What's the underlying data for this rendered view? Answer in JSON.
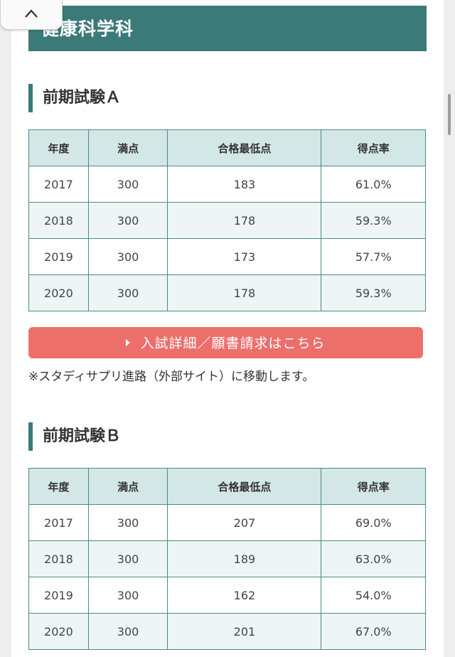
{
  "department": {
    "title": "健康科学科"
  },
  "table_headers": [
    "年度",
    "満点",
    "合格最低点",
    "得点率"
  ],
  "sections": [
    {
      "title": "前期試験Ａ",
      "rows": [
        [
          "2017",
          "300",
          "183",
          "61.0%"
        ],
        [
          "2018",
          "300",
          "178",
          "59.3%"
        ],
        [
          "2019",
          "300",
          "173",
          "57.7%"
        ],
        [
          "2020",
          "300",
          "178",
          "59.3%"
        ]
      ]
    },
    {
      "title": "前期試験Ｂ",
      "rows": [
        [
          "2017",
          "300",
          "207",
          "69.0%"
        ],
        [
          "2018",
          "300",
          "189",
          "63.0%"
        ],
        [
          "2019",
          "300",
          "162",
          "54.0%"
        ],
        [
          "2020",
          "300",
          "201",
          "67.0%"
        ]
      ]
    }
  ],
  "cta": {
    "label": "入試詳細／願書請求はこちら"
  },
  "note": "※スタディサプリ進路（外部サイト）に移動します。",
  "icons": {
    "collapse": "chevron-up-icon",
    "cta_arrow": "triangle-right-icon"
  },
  "colors": {
    "accent": "#3b7a78",
    "header_cell": "#d3e7e6",
    "stripe": "#eef5f5",
    "cta": "#ec6f6c"
  }
}
